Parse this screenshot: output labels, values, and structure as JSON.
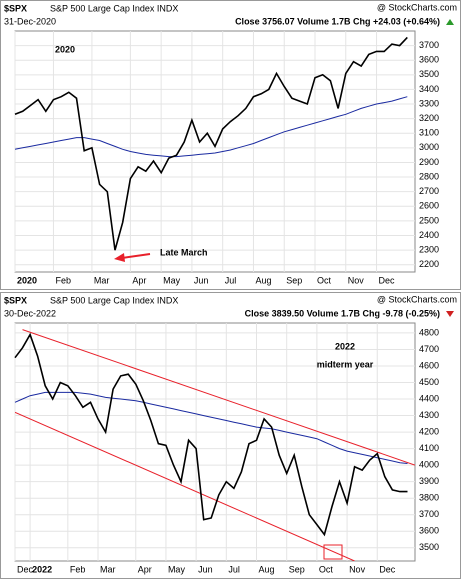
{
  "chart_data": [
    {
      "type": "line",
      "symbol": "$SPX",
      "title": "S&P 500 Large Cap Index INDX",
      "source": "@ StockCharts.com",
      "date": "31-Dec-2020",
      "quote": "Close 3756.07  Volume 1.7B  Chg +24.03 (+0.64%)",
      "annotations": [
        "2020",
        "Late March"
      ],
      "x": [
        0,
        1,
        2,
        3,
        4,
        5,
        6,
        7,
        8,
        9,
        10,
        11,
        12,
        13,
        14,
        15,
        16,
        17,
        18,
        19,
        20,
        21,
        22,
        23,
        24,
        25,
        26,
        27,
        28,
        29,
        30,
        31,
        32,
        33,
        34,
        35,
        36,
        37,
        38,
        39,
        40,
        41,
        42,
        43,
        44,
        45,
        46,
        47,
        48,
        49,
        50,
        51
      ],
      "series": [
        {
          "color": "#000000",
          "values": [
            3230,
            3250,
            3290,
            3330,
            3250,
            3330,
            3350,
            3380,
            3340,
            2980,
            3000,
            2750,
            2700,
            2300,
            2490,
            2790,
            2870,
            2840,
            2910,
            2830,
            2930,
            2950,
            3040,
            3190,
            3040,
            3100,
            3010,
            3130,
            3180,
            3220,
            3270,
            3350,
            3370,
            3400,
            3510,
            3420,
            3340,
            3320,
            3300,
            3480,
            3500,
            3460,
            3270,
            3510,
            3590,
            3560,
            3640,
            3660,
            3660,
            3710,
            3700,
            3756
          ]
        },
        {
          "color": "#1a2aa0",
          "values": [
            2990,
            3000,
            3010,
            3020,
            3030,
            3040,
            3050,
            3060,
            3070,
            3070,
            3060,
            3050,
            3030,
            3010,
            2990,
            2975,
            2965,
            2955,
            2950,
            2945,
            2940,
            2940,
            2945,
            2950,
            2955,
            2960,
            2965,
            2975,
            2985,
            3000,
            3015,
            3030,
            3050,
            3070,
            3090,
            3110,
            3125,
            3140,
            3155,
            3170,
            3185,
            3200,
            3215,
            3230,
            3250,
            3270,
            3285,
            3300,
            3310,
            3320,
            3335,
            3350
          ]
        }
      ],
      "xlim": [
        0,
        52
      ],
      "xticks": [
        {
          "value": 0,
          "label": "2020"
        },
        {
          "value": 5,
          "label": "Feb"
        },
        {
          "value": 10,
          "label": "Mar"
        },
        {
          "value": 15,
          "label": "Apr"
        },
        {
          "value": 19,
          "label": "May"
        },
        {
          "value": 23,
          "label": "Jun"
        },
        {
          "value": 27,
          "label": "Jul"
        },
        {
          "value": 31,
          "label": "Aug"
        },
        {
          "value": 35,
          "label": "Sep"
        },
        {
          "value": 39,
          "label": "Oct"
        },
        {
          "value": 43,
          "label": "Nov"
        },
        {
          "value": 47,
          "label": "Dec"
        }
      ],
      "ylim": [
        2150,
        3800
      ],
      "yticks": [
        2200,
        2300,
        2400,
        2500,
        2600,
        2700,
        2800,
        2900,
        3000,
        3100,
        3200,
        3300,
        3400,
        3500,
        3600,
        3700
      ],
      "grid": true
    },
    {
      "type": "line",
      "symbol": "$SPX",
      "title": "S&P 500 Large Cap Index INDX",
      "source": "@ StockCharts.com",
      "date": "30-Dec-2022",
      "quote": "Close 3839.50  Volume 1.7B  Chg -9.78 (-0.25%)",
      "annotations": [
        "2022",
        "midterm year"
      ],
      "x": [
        0,
        1,
        2,
        3,
        4,
        5,
        6,
        7,
        8,
        9,
        10,
        11,
        12,
        13,
        14,
        15,
        16,
        17,
        18,
        19,
        20,
        21,
        22,
        23,
        24,
        25,
        26,
        27,
        28,
        29,
        30,
        31,
        32,
        33,
        34,
        35,
        36,
        37,
        38,
        39,
        40,
        41,
        42,
        43,
        44,
        45,
        46,
        47,
        48,
        49,
        50,
        51,
        52
      ],
      "series": [
        {
          "color": "#000000",
          "values": [
            4650,
            4710,
            4790,
            4660,
            4480,
            4400,
            4500,
            4480,
            4420,
            4350,
            4380,
            4280,
            4200,
            4460,
            4540,
            4550,
            4490,
            4390,
            4270,
            4130,
            4120,
            4000,
            3900,
            4150,
            4100,
            3670,
            3680,
            3820,
            3900,
            3860,
            3960,
            4130,
            4150,
            4280,
            4230,
            4060,
            3950,
            4060,
            3870,
            3700,
            3640,
            3580,
            3750,
            3900,
            3770,
            3990,
            3970,
            4030,
            4070,
            3930,
            3850,
            3840,
            3840
          ]
        },
        {
          "color": "#1a2aa0",
          "values": [
            4380,
            4400,
            4420,
            4430,
            4440,
            4440,
            4440,
            4440,
            4440,
            4435,
            4430,
            4420,
            4410,
            4405,
            4400,
            4395,
            4390,
            4380,
            4370,
            4360,
            4350,
            4340,
            4330,
            4320,
            4310,
            4300,
            4290,
            4280,
            4270,
            4260,
            4250,
            4240,
            4230,
            4225,
            4220,
            4210,
            4200,
            4190,
            4180,
            4170,
            4160,
            4140,
            4120,
            4100,
            4085,
            4075,
            4065,
            4055,
            4045,
            4035,
            4025,
            4015,
            4010
          ]
        }
      ],
      "trendlines": [
        {
          "color": "#e8202a",
          "x": [
            1,
            53
          ],
          "values": [
            4820,
            4000
          ]
        },
        {
          "color": "#e8202a",
          "x": [
            0,
            45
          ],
          "values": [
            4320,
            3420
          ]
        }
      ],
      "xlim": [
        0,
        53
      ],
      "xticks": [
        {
          "value": 0,
          "label": "Dec"
        },
        {
          "value": 2,
          "label": "2022"
        },
        {
          "value": 7,
          "label": "Feb"
        },
        {
          "value": 11,
          "label": "Mar"
        },
        {
          "value": 16,
          "label": "Apr"
        },
        {
          "value": 20,
          "label": "May"
        },
        {
          "value": 24,
          "label": "Jun"
        },
        {
          "value": 28,
          "label": "Jul"
        },
        {
          "value": 32,
          "label": "Aug"
        },
        {
          "value": 36,
          "label": "Sep"
        },
        {
          "value": 40,
          "label": "Oct"
        },
        {
          "value": 44,
          "label": "Nov"
        },
        {
          "value": 48,
          "label": "Dec"
        }
      ],
      "ylim": [
        3420,
        4860
      ],
      "yticks": [
        3500,
        3600,
        3700,
        3800,
        3900,
        4000,
        4100,
        4200,
        4300,
        4400,
        4500,
        4600,
        4700,
        4800
      ],
      "grid": true
    }
  ]
}
